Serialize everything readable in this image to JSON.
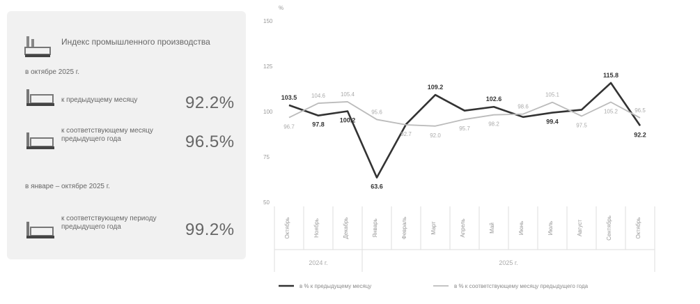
{
  "summary": {
    "title": "Индекс промышленного производства",
    "sections": [
      {
        "label": "в октябре 2025 г.",
        "rows": [
          {
            "text": "к предыдущему месяцу",
            "value": "92.2%"
          },
          {
            "text": "к соответствующему месяцу предыдущего года",
            "value": "96.5%"
          }
        ]
      },
      {
        "label": "в январе – октябре 2025 г.",
        "rows": [
          {
            "text": "к соответствующему периоду предыдущего года",
            "value": "99.2%"
          }
        ]
      }
    ]
  },
  "chart_data": {
    "type": "line",
    "y_unit": "%",
    "ylim": [
      50,
      150
    ],
    "yticks": [
      "50",
      "75",
      "100",
      "125",
      "150"
    ],
    "categories": [
      "Октябрь",
      "Ноябрь",
      "Декабрь",
      "Январь",
      "Февраль",
      "Март",
      "Апрель",
      "Май",
      "Июнь",
      "Июль",
      "Август",
      "Сентябрь",
      "Октябрь"
    ],
    "year_groups": [
      {
        "label": "2024 г.",
        "start": 0,
        "end": 2
      },
      {
        "label": "2025 г.",
        "start": 3,
        "end": 12
      }
    ],
    "series": [
      {
        "name": "в % к предыдущему месяцу",
        "color": "#333333",
        "values": [
          103.5,
          97.8,
          100.2,
          63.6,
          93.0,
          109.2,
          100.5,
          102.6,
          97.0,
          99.4,
          101.0,
          115.8,
          92.2
        ],
        "labels": [
          "103.5",
          "97.8",
          "100.2",
          "63.6",
          null,
          "109.2",
          null,
          "102.6",
          null,
          "99.4",
          null,
          "115.8",
          "92.2"
        ]
      },
      {
        "name": "в % к соответствующему месяцу предыдущего года",
        "color": "#bbbbbb",
        "values": [
          96.7,
          104.6,
          105.4,
          95.6,
          92.7,
          92.0,
          95.7,
          98.2,
          98.6,
          105.1,
          97.5,
          105.2,
          96.5
        ],
        "labels": [
          "96.7",
          "104.6",
          "105.4",
          "95.6",
          "92.7",
          "92.0",
          "95.7",
          "98.2",
          "98.6",
          "105.1",
          "97.5",
          "105.2",
          "96.5"
        ]
      }
    ]
  }
}
